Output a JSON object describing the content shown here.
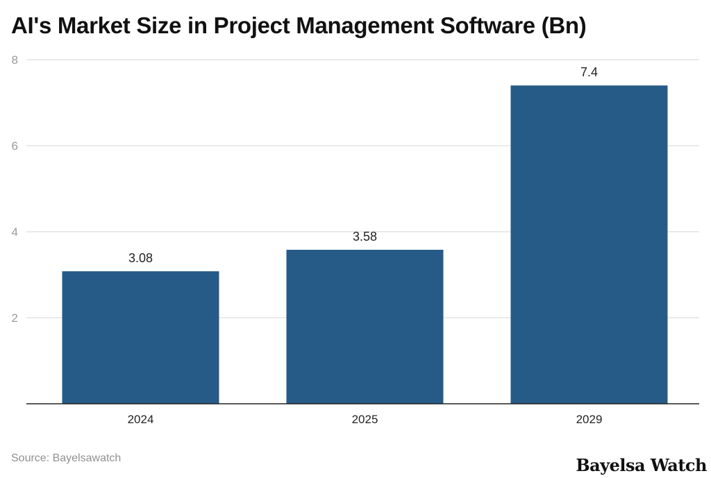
{
  "chart_data": {
    "type": "bar",
    "title": "AI's Market Size in Project Management Software (Bn)",
    "categories": [
      "2024",
      "2025",
      "2029"
    ],
    "values": [
      3.08,
      3.58,
      7.4
    ],
    "data_labels": [
      "3.08",
      "3.58",
      "7.4"
    ],
    "xlabel": "",
    "ylabel": "",
    "ylim": [
      0,
      8
    ],
    "yticks": [
      2,
      4,
      6,
      8
    ],
    "grid": true,
    "bar_color": "#265b88"
  },
  "footer": {
    "source": "Source: Bayelsawatch",
    "brand": "Bayelsa Watch"
  }
}
